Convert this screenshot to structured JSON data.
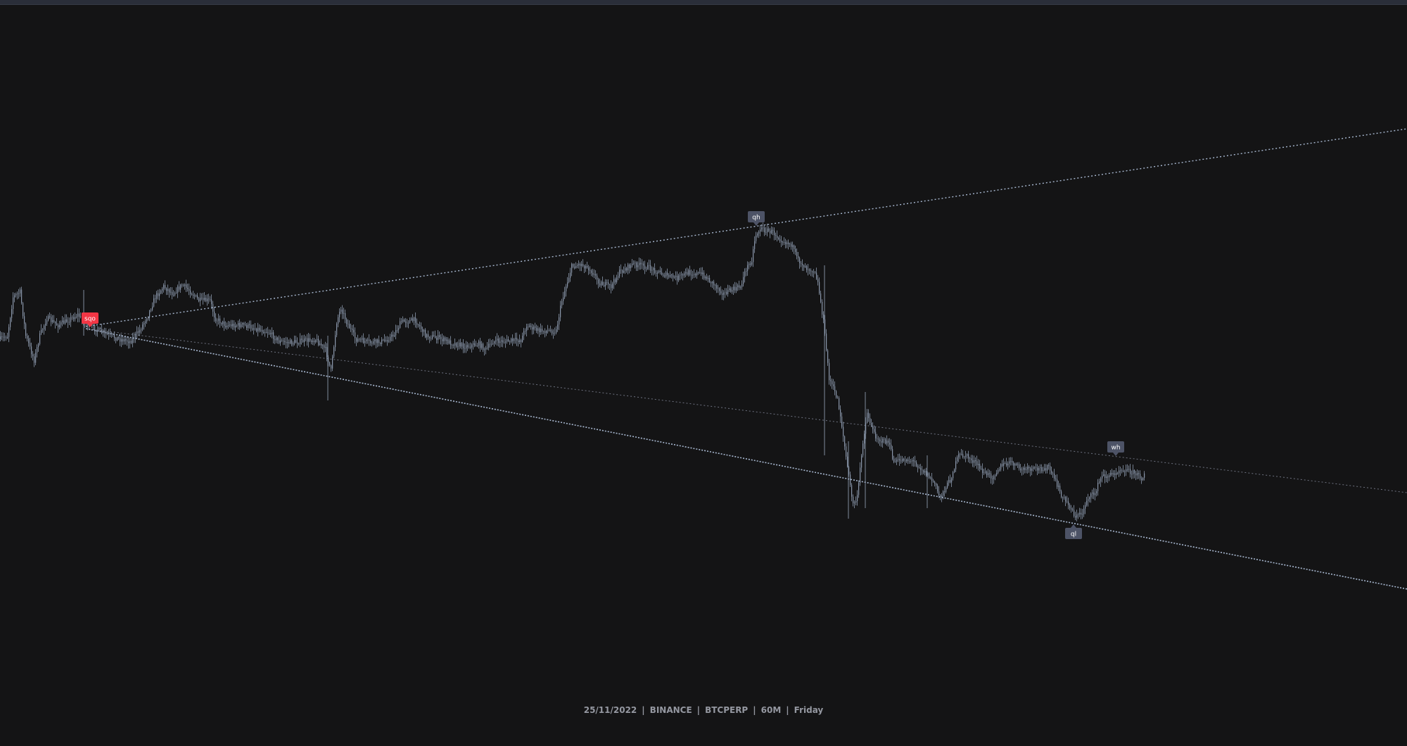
{
  "chart_data": {
    "type": "candlestick",
    "exchange": "BINANCE",
    "symbol": "BTCPERP",
    "interval": "60M",
    "date": "25/11/2022",
    "weekday": "Friday",
    "price_axis_shown": false,
    "time_axis_shown": false,
    "grid": false,
    "colors": {
      "background": "#141415",
      "candle": "#8b98ac",
      "trendline": "#a8b8d0",
      "midline": "#6e7280",
      "label_default": "#4d5366",
      "label_highlight": "#f23645",
      "caption": "#9598a1"
    },
    "markers": [
      {
        "text": "sqo",
        "highlight": true
      },
      {
        "text": "qh",
        "highlight": false
      },
      {
        "text": "wh",
        "highlight": false
      },
      {
        "text": "ql",
        "highlight": false
      }
    ],
    "trendlines": [
      {
        "name": "upper"
      },
      {
        "name": "middle"
      },
      {
        "name": "lower"
      }
    ]
  },
  "footer": {
    "date": "25/11/2022",
    "exchange": "BINANCE",
    "symbol": "BTCPERP",
    "interval": "60M",
    "weekday": "Friday",
    "separator": "|"
  }
}
